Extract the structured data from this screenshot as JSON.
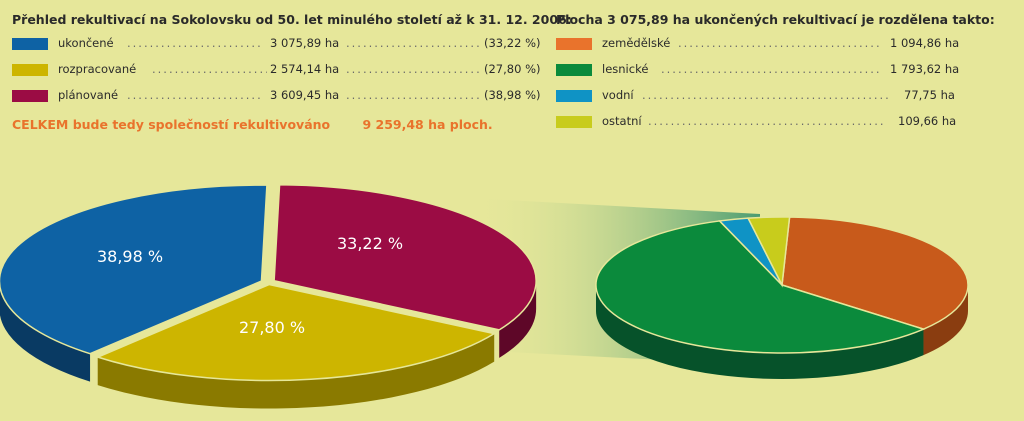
{
  "left": {
    "title": "Přehled rekultivací na Sokolovsku od 50. let minulého století až k 31. 12. 2006:",
    "items": [
      {
        "label": "ukončené",
        "value": "3 075,89 ha",
        "pct": "(33,22 %)",
        "color": "#0e62a4"
      },
      {
        "label": "rozpracované",
        "value": "2 574,14 ha",
        "pct": "(27,80 %)",
        "color": "#cdb500"
      },
      {
        "label": "plánované",
        "value": "3 609,45 ha",
        "pct": "(38,98 %)",
        "color": "#9b0c44"
      }
    ],
    "total_label": "CELKEM bude tedy společností rekultivováno",
    "total_value": "9 259,48 ha ploch."
  },
  "right": {
    "title": "Plocha 3 075,89 ha ukončených rekultivací je rozdělena takto:",
    "items": [
      {
        "label": "zemědělské",
        "value": "1 094,86 ha",
        "color": "#e9732c"
      },
      {
        "label": "lesnické",
        "value": "1 793,62 ha",
        "color": "#0b8a3c"
      },
      {
        "label": "vodní",
        "value": "77,75 ha",
        "color": "#0f93c5"
      },
      {
        "label": "ostatní",
        "value": "109,66 ha",
        "color": "#c8cc1c"
      }
    ]
  },
  "chart_data": [
    {
      "type": "pie",
      "series": [
        {
          "values": [
            3075.89,
            2574.14,
            3609.45
          ]
        }
      ],
      "categories": [
        "ukončené",
        "rozpracované",
        "plánované"
      ],
      "labels": [
        "33,22 %",
        "27,80 %",
        "38,98 %"
      ],
      "units": "ha",
      "colors": [
        "#9b0c44",
        "#cdb500",
        "#0e62a4"
      ],
      "side_colors": [
        "#5e0728",
        "#8a7a00",
        "#093a63"
      ]
    },
    {
      "type": "pie",
      "series": [
        {
          "values": [
            1094.86,
            1793.62,
            77.75,
            109.66
          ]
        }
      ],
      "categories": [
        "zemědělské",
        "lesnické",
        "vodní",
        "ostatní"
      ],
      "units": "ha",
      "colors": [
        "#c85a1b",
        "#0b8a3c",
        "#0f93c5",
        "#c8cc1c"
      ],
      "side_colors": [
        "#8a3d10",
        "#06522a",
        "#0a6588",
        "#8a8d10"
      ]
    }
  ]
}
